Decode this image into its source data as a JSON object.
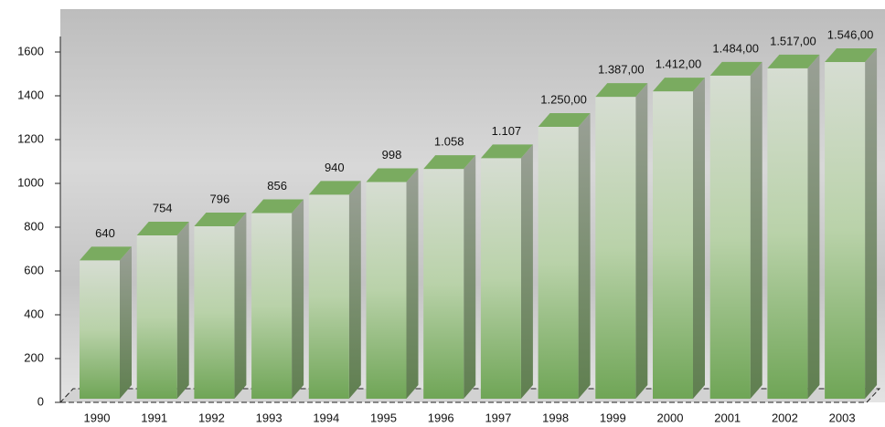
{
  "chart_data": {
    "type": "bar3d",
    "categories": [
      "1990",
      "1991",
      "1992",
      "1993",
      "1994",
      "1995",
      "1996",
      "1997",
      "1998",
      "1999",
      "2000",
      "2001",
      "2002",
      "2003"
    ],
    "values": [
      640,
      754,
      796,
      856,
      940,
      998,
      1058,
      1107,
      1250,
      1387,
      1412,
      1484,
      1517,
      1546
    ],
    "value_labels": [
      "640",
      "754",
      "796",
      "856",
      "940",
      "998",
      "1.058",
      "1.107",
      "1.250,00",
      "1.387,00",
      "1.412,00",
      "1.484,00",
      "1.517,00",
      "1.546,00"
    ],
    "color": "#7aab60",
    "ylim": [
      0,
      1600
    ],
    "yticks": [
      0,
      200,
      400,
      600,
      800,
      1000,
      1200,
      1400,
      1600
    ]
  }
}
